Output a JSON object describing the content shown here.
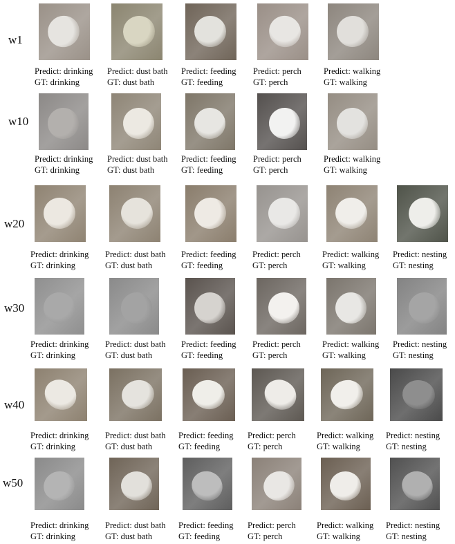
{
  "rows": [
    {
      "label": "w1",
      "cells": [
        {
          "predict": "Predict: drinking",
          "gt": "GT: drinking",
          "bg": "#9a9188",
          "bird": "#e6e4e0"
        },
        {
          "predict": "Predict: dust bath",
          "gt": "GT: dust bath",
          "bg": "#8b8570",
          "bird": "#d9d6c2"
        },
        {
          "predict": "Predict: feeding",
          "gt": "GT: feeding",
          "bg": "#6f6458",
          "bird": "#e3e2dd"
        },
        {
          "predict": "Predict: perch",
          "gt": "GT: perch",
          "bg": "#9a8f87",
          "bird": "#e8e6e3"
        },
        {
          "predict": "Predict: walking",
          "gt": "GT: walking",
          "bg": "#8d867e",
          "bird": "#e1dfdb"
        }
      ]
    },
    {
      "label": "w10",
      "cells": [
        {
          "predict": "Predict: drinking",
          "gt": "GT: drinking",
          "bg": "#8c8987",
          "bird": "#b3b0ad"
        },
        {
          "predict": "Predict: dust bath",
          "gt": "GT: dust bath",
          "bg": "#8e8576",
          "bird": "#ece9e2"
        },
        {
          "predict": "Predict: feeding",
          "gt": "GT: feeding",
          "bg": "#7e7668",
          "bird": "#e7e6e2"
        },
        {
          "predict": "Predict: perch",
          "gt": "GT: perch",
          "bg": "#54504e",
          "bird": "#f2f2f1"
        },
        {
          "predict": "Predict: walking",
          "gt": "GT: walking",
          "bg": "#958d83",
          "bird": "#e3e2df"
        }
      ]
    },
    {
      "label": "w20",
      "cells": [
        {
          "predict": "Predict: drinking",
          "gt": "GT: drinking",
          "bg": "#8f8372",
          "bird": "#ece8e1"
        },
        {
          "predict": "Predict: dust bath",
          "gt": "GT: dust bath",
          "bg": "#8d8272",
          "bird": "#e6e3dc"
        },
        {
          "predict": "Predict: feeding",
          "gt": "GT: feeding",
          "bg": "#8a7d6c",
          "bird": "#eeeae4"
        },
        {
          "predict": "Predict: perch",
          "gt": "GT: perch",
          "bg": "#97938f",
          "bird": "#e9e8e6"
        },
        {
          "predict": "Predict: walking",
          "gt": "GT: walking",
          "bg": "#8e8374",
          "bird": "#f0eeea"
        },
        {
          "predict": "Predict: nesting",
          "gt": "GT: nesting",
          "bg": "#4f5349",
          "bird": "#eeeeea"
        }
      ]
    },
    {
      "label": "w30",
      "cells": [
        {
          "predict": "Predict: drinking",
          "gt": "GT: drinking",
          "bg": "#8f8f8f",
          "bird": "#a9a9a9"
        },
        {
          "predict": "Predict: dust bath",
          "gt": "GT: dust bath",
          "bg": "#8a8a8a",
          "bird": "#a3a3a3"
        },
        {
          "predict": "Predict: feeding",
          "gt": "GT: feeding",
          "bg": "#5a534e",
          "bird": "#d6d3cf"
        },
        {
          "predict": "Predict: perch",
          "gt": "GT: perch",
          "bg": "#6c6660",
          "bird": "#f3f1ee"
        },
        {
          "predict": "Predict: walking",
          "gt": "GT: walking",
          "bg": "#7b756d",
          "bird": "#e8e7e4"
        },
        {
          "predict": "Predict: nesting",
          "gt": "GT: nesting",
          "bg": "#838383",
          "bird": "#a5a5a5"
        }
      ]
    },
    {
      "label": "w40",
      "cells": [
        {
          "predict": "Predict: drinking",
          "gt": "GT: drinking",
          "bg": "#8d8170",
          "bird": "#ece9e3"
        },
        {
          "predict": "Predict: dust bath",
          "gt": "GT: dust bath",
          "bg": "#7b7162",
          "bird": "#e5e3de"
        },
        {
          "predict": "Predict: feeding",
          "gt": "GT: feeding",
          "bg": "#6a5e52",
          "bird": "#efeee9"
        },
        {
          "predict": "Predict: perch",
          "gt": "GT: perch",
          "bg": "#5d5852",
          "bird": "#eeece8"
        },
        {
          "predict": "Predict: walking",
          "gt": "GT: walking",
          "bg": "#6e6658",
          "bird": "#f1efeb"
        },
        {
          "predict": "Predict: nesting",
          "gt": "GT: nesting",
          "bg": "#4a4a4a",
          "bird": "#8e8e8e"
        }
      ]
    },
    {
      "label": "w50",
      "cells": [
        {
          "predict": "Predict: drinking",
          "gt": "GT: drinking",
          "bg": "#8a8a8a",
          "bird": "#b4b4b4"
        },
        {
          "predict": "Predict: dust bath",
          "gt": "GT: dust bath",
          "bg": "#6f6457",
          "bird": "#e2e0db"
        },
        {
          "predict": "Predict: feeding",
          "gt": "GT: feeding",
          "bg": "#5e5e5e",
          "bird": "#bdbdbd"
        },
        {
          "predict": "Predict: perch",
          "gt": "GT: perch",
          "bg": "#8b8178",
          "bird": "#e9e7e4"
        },
        {
          "predict": "Predict: walking",
          "gt": "GT: walking",
          "bg": "#6b5f52",
          "bird": "#efede9"
        },
        {
          "predict": "Predict: nesting",
          "gt": "GT: nesting",
          "bg": "#505050",
          "bird": "#b0b0b0"
        }
      ]
    }
  ]
}
